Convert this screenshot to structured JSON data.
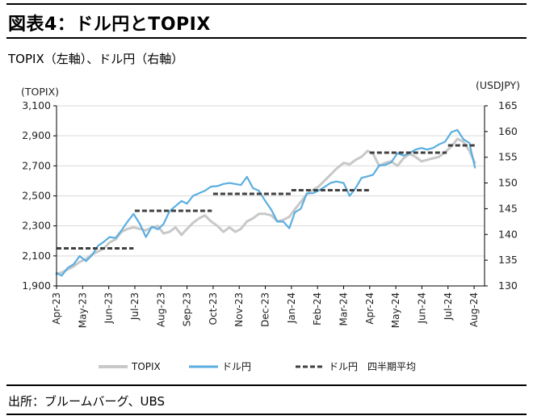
{
  "header": {
    "title": "図表4：ドル円とTOPIX",
    "subtitle": "TOPIX（左軸）、ドル円（右軸）",
    "source": "出所：ブルームバーグ、UBS"
  },
  "colors": {
    "topix": "#c8c8c8",
    "usdjpy": "#5aaee0",
    "avg": "#404040",
    "grid": "#d9d9d9"
  },
  "chart_data": {
    "type": "line",
    "title": "",
    "left_axis_label": "(TOPIX)",
    "right_axis_label": "(USDJPY)",
    "left_ylim": [
      1900,
      3100
    ],
    "left_ticks": [
      "1,900",
      "2,100",
      "2,300",
      "2,500",
      "2,700",
      "2,900",
      "3,100"
    ],
    "right_ylim": [
      130,
      165
    ],
    "right_ticks": [
      "130",
      "135",
      "140",
      "145",
      "150",
      "155",
      "160",
      "165"
    ],
    "x_tick_labels": [
      "Apr-23",
      "May-23",
      "Jun-23",
      "Jul-23",
      "Aug-23",
      "Sep-23",
      "Oct-23",
      "Nov-23",
      "Dec-23",
      "Jan-24",
      "Feb-24",
      "Mar-24",
      "Apr-24",
      "May-24",
      "Jun-24",
      "Jul-24",
      "Aug-24"
    ],
    "gridlines": "horizontal",
    "legend_position": "bottom",
    "series": [
      {
        "name": "TOPIX",
        "axis": "left",
        "x": [
          "2023-04-01",
          "2023-04-07",
          "2023-04-14",
          "2023-04-21",
          "2023-04-28",
          "2023-05-05",
          "2023-05-12",
          "2023-05-19",
          "2023-05-26",
          "2023-06-02",
          "2023-06-09",
          "2023-06-16",
          "2023-06-23",
          "2023-06-30",
          "2023-07-07",
          "2023-07-14",
          "2023-07-21",
          "2023-07-28",
          "2023-08-04",
          "2023-08-11",
          "2023-08-18",
          "2023-08-25",
          "2023-09-01",
          "2023-09-08",
          "2023-09-15",
          "2023-09-22",
          "2023-09-29",
          "2023-10-06",
          "2023-10-13",
          "2023-10-20",
          "2023-10-27",
          "2023-11-03",
          "2023-11-10",
          "2023-11-17",
          "2023-11-24",
          "2023-12-01",
          "2023-12-08",
          "2023-12-15",
          "2023-12-22",
          "2023-12-29",
          "2024-01-05",
          "2024-01-12",
          "2024-01-19",
          "2024-01-26",
          "2024-02-02",
          "2024-02-09",
          "2024-02-16",
          "2024-02-23",
          "2024-03-01",
          "2024-03-08",
          "2024-03-15",
          "2024-03-22",
          "2024-03-29",
          "2024-04-05",
          "2024-04-12",
          "2024-04-19",
          "2024-04-26",
          "2024-05-03",
          "2024-05-10",
          "2024-05-17",
          "2024-05-24",
          "2024-05-31",
          "2024-06-07",
          "2024-06-14",
          "2024-06-21",
          "2024-06-28",
          "2024-07-05",
          "2024-07-12",
          "2024-07-19",
          "2024-07-26",
          "2024-08-02"
        ],
        "values": [
          1980,
          1990,
          2010,
          2030,
          2060,
          2080,
          2110,
          2130,
          2150,
          2190,
          2210,
          2260,
          2280,
          2290,
          2280,
          2270,
          2290,
          2300,
          2250,
          2260,
          2290,
          2240,
          2280,
          2320,
          2350,
          2370,
          2330,
          2300,
          2260,
          2290,
          2260,
          2280,
          2330,
          2350,
          2380,
          2380,
          2370,
          2330,
          2340,
          2360,
          2410,
          2460,
          2510,
          2540,
          2560,
          2600,
          2640,
          2680,
          2720,
          2710,
          2740,
          2760,
          2800,
          2780,
          2700,
          2720,
          2730,
          2700,
          2750,
          2780,
          2760,
          2730,
          2740,
          2750,
          2760,
          2790,
          2830,
          2880,
          2860,
          2800,
          2720
        ]
      },
      {
        "name": "ドル円",
        "axis": "right",
        "x": [
          "2023-04-01",
          "2023-04-07",
          "2023-04-14",
          "2023-04-21",
          "2023-04-28",
          "2023-05-05",
          "2023-05-12",
          "2023-05-19",
          "2023-05-26",
          "2023-06-02",
          "2023-06-09",
          "2023-06-16",
          "2023-06-23",
          "2023-06-30",
          "2023-07-07",
          "2023-07-14",
          "2023-07-21",
          "2023-07-28",
          "2023-08-04",
          "2023-08-11",
          "2023-08-18",
          "2023-08-25",
          "2023-09-01",
          "2023-09-08",
          "2023-09-15",
          "2023-09-22",
          "2023-09-29",
          "2023-10-06",
          "2023-10-13",
          "2023-10-20",
          "2023-10-27",
          "2023-11-03",
          "2023-11-10",
          "2023-11-17",
          "2023-11-24",
          "2023-12-01",
          "2023-12-08",
          "2023-12-15",
          "2023-12-22",
          "2023-12-29",
          "2024-01-05",
          "2024-01-12",
          "2024-01-19",
          "2024-01-26",
          "2024-02-02",
          "2024-02-09",
          "2024-02-16",
          "2024-02-23",
          "2024-03-01",
          "2024-03-08",
          "2024-03-15",
          "2024-03-22",
          "2024-03-29",
          "2024-04-05",
          "2024-04-12",
          "2024-04-19",
          "2024-04-26",
          "2024-05-03",
          "2024-05-10",
          "2024-05-17",
          "2024-05-24",
          "2024-05-31",
          "2024-06-07",
          "2024-06-14",
          "2024-06-21",
          "2024-06-28",
          "2024-07-05",
          "2024-07-12",
          "2024-07-19",
          "2024-07-26",
          "2024-08-02"
        ],
        "values": [
          132.5,
          132.0,
          133.5,
          134.2,
          135.8,
          134.8,
          136.0,
          137.8,
          138.6,
          139.5,
          139.3,
          140.8,
          142.5,
          144.0,
          142.0,
          139.5,
          141.5,
          141.0,
          142.0,
          144.5,
          145.5,
          146.5,
          146.0,
          147.5,
          148.0,
          148.5,
          149.3,
          149.4,
          149.8,
          150.0,
          149.8,
          149.6,
          151.2,
          149.0,
          148.5,
          146.5,
          144.8,
          142.5,
          142.5,
          141.2,
          144.3,
          145.0,
          148.0,
          148.0,
          148.5,
          149.2,
          150.0,
          150.3,
          150.0,
          147.5,
          149.0,
          151.0,
          151.3,
          151.6,
          153.4,
          153.5,
          154.0,
          155.8,
          155.3,
          155.8,
          156.5,
          156.8,
          156.5,
          156.8,
          157.5,
          158.0,
          159.9,
          160.3,
          158.5,
          157.8,
          153.0
        ]
      },
      {
        "name": "ドル円　四半期平均",
        "axis": "right",
        "segments": [
          {
            "from": "2023-04-01",
            "to": "2023-06-30",
            "value": 137.3
          },
          {
            "from": "2023-07-01",
            "to": "2023-09-30",
            "value": 144.6
          },
          {
            "from": "2023-10-01",
            "to": "2023-12-31",
            "value": 147.9
          },
          {
            "from": "2024-01-01",
            "to": "2024-03-31",
            "value": 148.6
          },
          {
            "from": "2024-04-01",
            "to": "2024-06-30",
            "value": 155.9
          },
          {
            "from": "2024-07-01",
            "to": "2024-08-02",
            "value": 157.3
          }
        ]
      }
    ]
  }
}
